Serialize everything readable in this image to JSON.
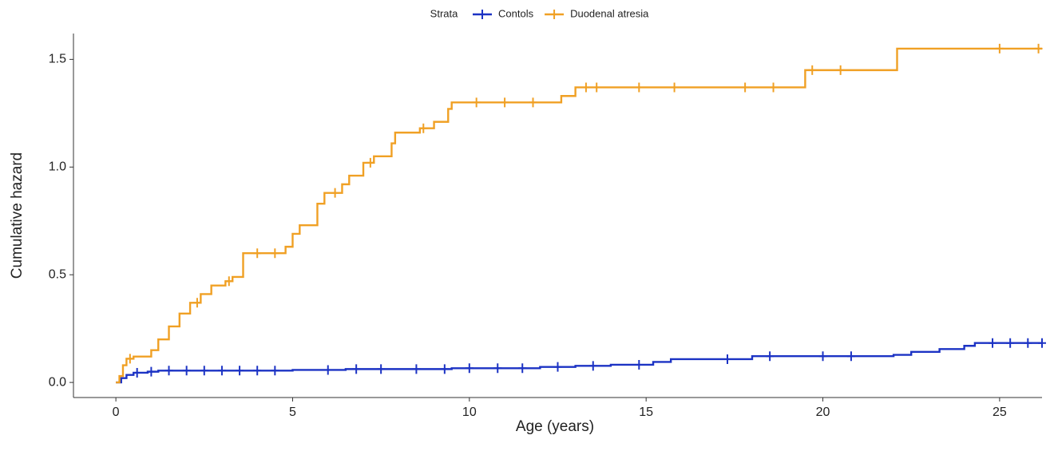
{
  "chart_data": {
    "type": "step",
    "xlabel": "Age (years)",
    "ylabel": "Cumulative hazard",
    "legend_title": "Strata",
    "legend": "top",
    "xlim": [
      -1.2,
      26.2
    ],
    "ylim": [
      -0.07,
      1.62
    ],
    "xticks": [
      0,
      5,
      10,
      15,
      20,
      25
    ],
    "yticks": [
      {
        "value": 0,
        "label": "0.0"
      },
      0.5,
      {
        "value": 1,
        "label": "1.0"
      },
      1.5
    ],
    "series": [
      {
        "name": "Contols",
        "color": "#1c33c4",
        "x": [
          0,
          0.15,
          0.3,
          0.5,
          0.9,
          1.2,
          5,
          6.5,
          9.5,
          12,
          13,
          14,
          15.2,
          15.7,
          18,
          22,
          22.5,
          23.3,
          24,
          24.3,
          26.2
        ],
        "values": [
          0,
          0.02,
          0.035,
          0.045,
          0.05,
          0.055,
          0.058,
          0.062,
          0.066,
          0.072,
          0.077,
          0.082,
          0.095,
          0.108,
          0.122,
          0.128,
          0.142,
          0.155,
          0.17,
          0.183,
          0.183
        ],
        "censor_x": [
          0.6,
          1.0,
          1.5,
          2,
          2.5,
          3,
          3.5,
          4,
          4.5,
          6,
          6.8,
          7.5,
          8.5,
          9.3,
          10,
          10.8,
          11.5,
          12.5,
          13.5,
          14.8,
          17.3,
          18.5,
          20,
          20.8,
          24.8,
          25.3,
          25.8,
          26.2
        ],
        "censor_values": [
          0.045,
          0.05,
          0.055,
          0.055,
          0.055,
          0.055,
          0.055,
          0.055,
          0.055,
          0.058,
          0.062,
          0.062,
          0.062,
          0.062,
          0.066,
          0.066,
          0.066,
          0.072,
          0.077,
          0.082,
          0.108,
          0.122,
          0.122,
          0.122,
          0.183,
          0.183,
          0.183,
          0.183
        ]
      },
      {
        "name": "Duodenal atresia",
        "color": "#f0a024",
        "x": [
          0,
          0.1,
          0.2,
          0.3,
          0.5,
          1.0,
          1.2,
          1.5,
          1.8,
          2.1,
          2.4,
          2.7,
          3.1,
          3.3,
          3.6,
          4.8,
          5.0,
          5.2,
          5.7,
          5.9,
          6.4,
          6.6,
          7.0,
          7.3,
          7.8,
          7.9,
          8.6,
          9.0,
          9.4,
          9.5,
          12.6,
          13.0,
          19.5,
          22.1,
          26.2
        ],
        "values": [
          0,
          0.03,
          0.08,
          0.11,
          0.12,
          0.15,
          0.2,
          0.26,
          0.32,
          0.37,
          0.41,
          0.45,
          0.47,
          0.49,
          0.6,
          0.63,
          0.69,
          0.73,
          0.83,
          0.88,
          0.92,
          0.96,
          1.02,
          1.05,
          1.11,
          1.16,
          1.18,
          1.21,
          1.27,
          1.3,
          1.33,
          1.37,
          1.45,
          1.55,
          1.55
        ],
        "censor_x": [
          0.4,
          2.3,
          3.2,
          4.0,
          4.5,
          6.2,
          7.2,
          8.7,
          10.2,
          11,
          11.8,
          13.3,
          13.6,
          14.8,
          15.8,
          17.8,
          18.6,
          19.7,
          20.5,
          25,
          26.1
        ],
        "censor_values": [
          0.11,
          0.37,
          0.47,
          0.6,
          0.6,
          0.88,
          1.02,
          1.18,
          1.3,
          1.3,
          1.3,
          1.37,
          1.37,
          1.37,
          1.37,
          1.37,
          1.37,
          1.45,
          1.45,
          1.55,
          1.55
        ]
      }
    ]
  }
}
